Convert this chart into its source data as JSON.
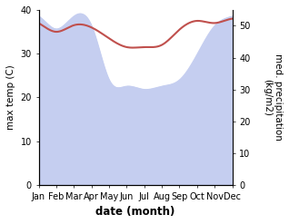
{
  "months": [
    "Jan",
    "Feb",
    "Mar",
    "Apr",
    "May",
    "Jun",
    "Jul",
    "Aug",
    "Sep",
    "Oct",
    "Nov",
    "Dec"
  ],
  "temperature": [
    37.0,
    35.0,
    36.5,
    36.0,
    33.5,
    31.5,
    31.5,
    32.0,
    35.5,
    37.5,
    37.0,
    38.0
  ],
  "precipitation": [
    53,
    49,
    53,
    50,
    33,
    31,
    30,
    31,
    33,
    41,
    50,
    53
  ],
  "temp_color": "#c0504d",
  "precip_fill_color": "#c5cef0",
  "ylabel_left": "max temp (C)",
  "ylabel_right": "med. precipitation\n(kg/m2)",
  "xlabel": "date (month)",
  "ylim_left": [
    0,
    40
  ],
  "ylim_right": [
    0,
    55
  ],
  "yticks_left": [
    0,
    10,
    20,
    30,
    40
  ],
  "yticks_right": [
    0,
    10,
    20,
    30,
    40,
    50
  ],
  "background_color": "#ffffff",
  "label_fontsize": 7.5,
  "tick_fontsize": 7.0,
  "xlabel_fontsize": 8.5
}
